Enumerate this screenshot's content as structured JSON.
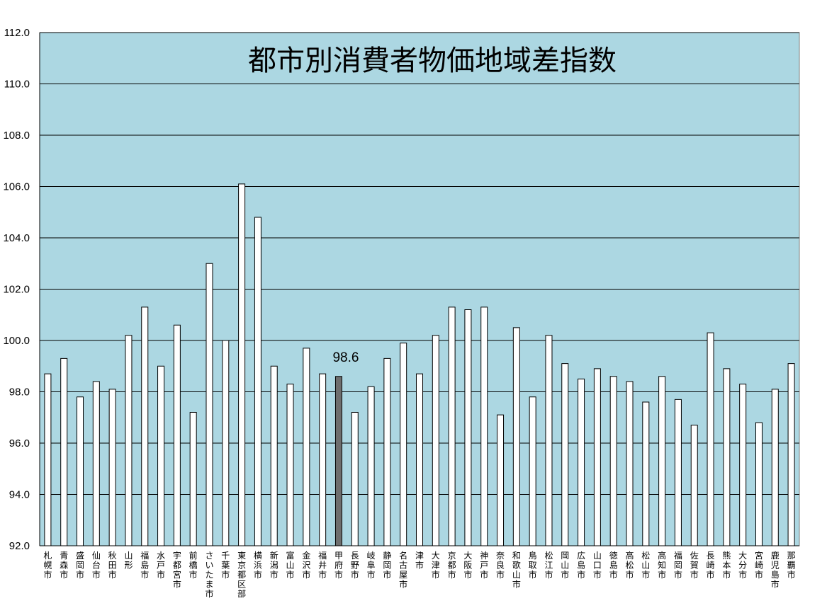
{
  "chart_data": {
    "type": "bar",
    "title": "都市別消費者物価地域差指数",
    "xlabel": "",
    "ylabel": "",
    "ylim": [
      92.0,
      112.0
    ],
    "yticks": [
      "92.0",
      "94.0",
      "96.0",
      "98.0",
      "100.0",
      "102.0",
      "104.0",
      "106.0",
      "108.0",
      "110.0",
      "112.0"
    ],
    "grid": true,
    "colors": {
      "plot_background": "#acd7e2",
      "bar": "#ffffff",
      "highlight_bar": "#6e6e6e",
      "gridline": "#000000"
    },
    "highlight_category": "甲府市",
    "data_labels": [
      {
        "category": "甲府市",
        "text": "98.6"
      }
    ],
    "categories": [
      "札幌市",
      "青森市",
      "盛岡市",
      "仙台市",
      "秋田市",
      "山形",
      "福島市",
      "水戸市",
      "宇都宮市",
      "前橋市",
      "さいたま市",
      "千葉市",
      "東京都区部",
      "横浜市",
      "新潟市",
      "富山市",
      "金沢市",
      "福井市",
      "甲府市",
      "長野市",
      "岐阜市",
      "静岡市",
      "名古屋市",
      "津市",
      "大津市",
      "京都市",
      "大阪市",
      "神戸市",
      "奈良市",
      "和歌山市",
      "鳥取市",
      "松江市",
      "岡山市",
      "広島市",
      "山口市",
      "徳島市",
      "高松市",
      "松山市",
      "高知市",
      "福岡市",
      "佐賀市",
      "長崎市",
      "熊本市",
      "大分市",
      "宮崎市",
      "鹿児島市",
      "那覇市"
    ],
    "values": [
      98.7,
      99.3,
      97.8,
      98.4,
      98.1,
      100.2,
      101.3,
      99.0,
      100.6,
      97.2,
      103.0,
      100.0,
      106.1,
      104.8,
      99.0,
      98.3,
      99.7,
      98.7,
      98.6,
      97.2,
      98.2,
      99.3,
      99.9,
      98.7,
      100.2,
      101.3,
      101.2,
      101.3,
      97.1,
      100.5,
      97.8,
      100.2,
      99.1,
      98.5,
      98.9,
      98.6,
      98.4,
      97.6,
      98.6,
      97.7,
      96.7,
      100.3,
      98.9,
      98.3,
      96.8,
      98.1,
      99.1
    ]
  }
}
